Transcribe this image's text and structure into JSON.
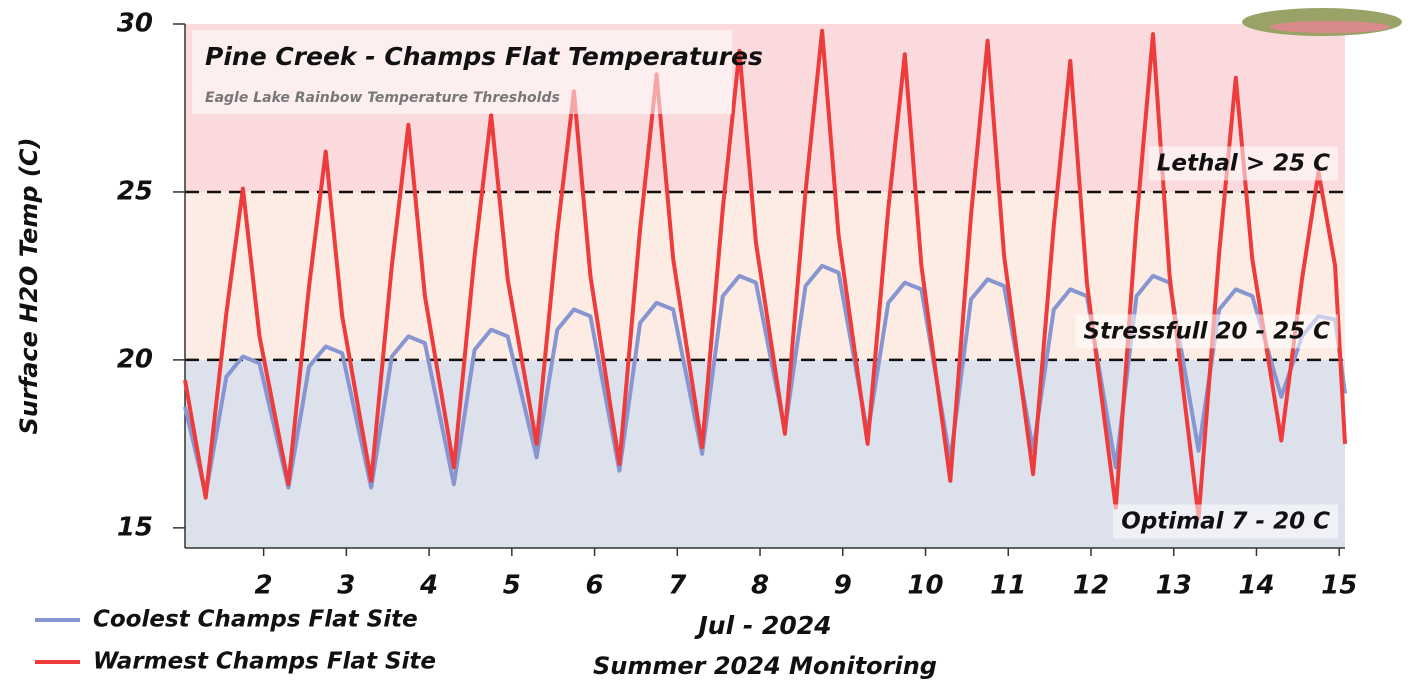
{
  "chart_data": {
    "type": "line",
    "title": "Pine Creek - Champs Flat Temperatures",
    "subtitle": "Eagle Lake Rainbow Temperature Thresholds",
    "y_label": "Surface H2O Temp (C)",
    "x_label": "Jul - 2024",
    "caption": "Summer 2024 Monitoring",
    "x": [
      1.05,
      1.3,
      1.55,
      1.75,
      1.95,
      2.3,
      2.55,
      2.75,
      2.95,
      3.3,
      3.55,
      3.75,
      3.95,
      4.3,
      4.55,
      4.75,
      4.95,
      5.3,
      5.55,
      5.75,
      5.95,
      6.3,
      6.55,
      6.75,
      6.95,
      7.3,
      7.55,
      7.75,
      7.95,
      8.3,
      8.55,
      8.75,
      8.95,
      9.3,
      9.55,
      9.75,
      9.95,
      10.3,
      10.55,
      10.75,
      10.95,
      11.3,
      11.55,
      11.75,
      11.95,
      12.3,
      12.55,
      12.75,
      12.95,
      13.3,
      13.55,
      13.75,
      13.95,
      14.3,
      14.55,
      14.75,
      14.95,
      15.07
    ],
    "series": [
      {
        "name": "Coolest Champs Flat Site",
        "color": "#8795d0",
        "values": [
          18.6,
          16.0,
          19.5,
          20.1,
          19.9,
          16.2,
          19.8,
          20.4,
          20.2,
          16.2,
          20.1,
          20.7,
          20.5,
          16.3,
          20.3,
          20.9,
          20.7,
          17.1,
          20.9,
          21.5,
          21.3,
          16.7,
          21.1,
          21.7,
          21.5,
          17.2,
          21.9,
          22.5,
          22.3,
          17.9,
          22.2,
          22.8,
          22.6,
          17.8,
          21.7,
          22.3,
          22.1,
          17.0,
          21.8,
          22.4,
          22.2,
          17.3,
          21.5,
          22.1,
          21.9,
          16.8,
          21.9,
          22.5,
          22.3,
          17.3,
          21.5,
          22.1,
          21.9,
          18.9,
          20.7,
          21.3,
          21.2,
          19.0
        ]
      },
      {
        "name": "Warmest Champs Flat Site",
        "color": "#ee3b3b",
        "values": [
          19.4,
          15.9,
          21.4,
          25.1,
          20.7,
          16.3,
          22.2,
          26.2,
          21.3,
          16.4,
          22.8,
          27.0,
          21.9,
          16.8,
          23.1,
          27.3,
          22.4,
          17.5,
          23.8,
          28.0,
          22.5,
          16.9,
          23.9,
          28.5,
          23.0,
          17.4,
          24.5,
          29.2,
          23.5,
          17.8,
          25.0,
          29.8,
          23.7,
          17.5,
          24.5,
          29.1,
          22.8,
          16.4,
          24.3,
          29.5,
          23.1,
          16.6,
          24.0,
          28.9,
          22.3,
          15.6,
          24.1,
          29.7,
          22.5,
          15.3,
          23.2,
          28.4,
          23.0,
          17.6,
          22.4,
          25.6,
          22.8,
          17.5
        ]
      }
    ],
    "xlim": [
      1.05,
      15.07
    ],
    "xticks": [
      2,
      3,
      4,
      5,
      6,
      7,
      8,
      9,
      10,
      11,
      12,
      13,
      14,
      15
    ],
    "ylim": [
      14.4,
      30
    ],
    "yticks": [
      15,
      20,
      25,
      30
    ],
    "bands": [
      {
        "label": "Lethal > 25 C",
        "min": 25,
        "color": "#fadadd"
      },
      {
        "label": "Stressfull 20 - 25 C",
        "min": 20,
        "max": 25,
        "color": "#fcece3"
      },
      {
        "label": "Optimal 7 - 20 C",
        "max": 20,
        "color": "#dde1ec"
      }
    ],
    "legend": "bottom-left"
  }
}
